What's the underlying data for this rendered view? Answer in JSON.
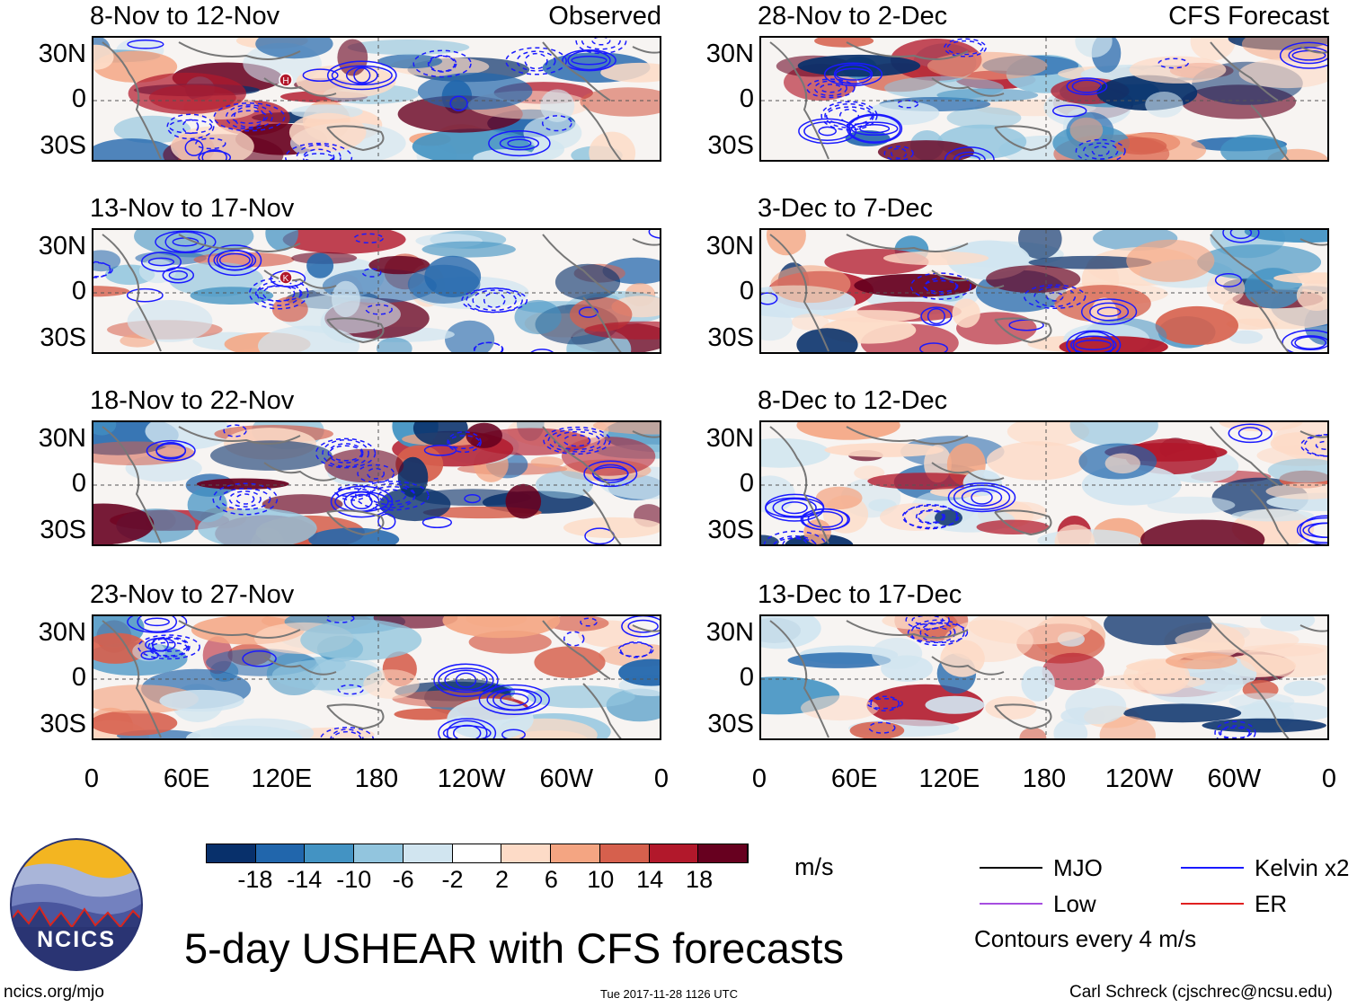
{
  "panels": [
    {
      "col": 0,
      "row": 0,
      "title": "8-Nov to 12-Nov",
      "tag": "Observed",
      "seed": 3
    },
    {
      "col": 0,
      "row": 1,
      "title": "13-Nov to 17-Nov",
      "tag": "",
      "seed": 7
    },
    {
      "col": 0,
      "row": 2,
      "title": "18-Nov to 22-Nov",
      "tag": "",
      "seed": 11
    },
    {
      "col": 0,
      "row": 3,
      "title": "23-Nov to 27-Nov",
      "tag": "",
      "seed": 17
    },
    {
      "col": 1,
      "row": 0,
      "title": "28-Nov to 2-Dec",
      "tag": "CFS Forecast",
      "seed": 23
    },
    {
      "col": 1,
      "row": 1,
      "title": "3-Dec to 7-Dec",
      "tag": "",
      "seed": 29
    },
    {
      "col": 1,
      "row": 2,
      "title": "8-Dec to 12-Dec",
      "tag": "",
      "seed": 31
    },
    {
      "col": 1,
      "row": 3,
      "title": "13-Dec to 17-Dec",
      "tag": "",
      "seed": 37
    }
  ],
  "lat_labels": [
    "30N",
    "0",
    "30S"
  ],
  "lon_labels": [
    "0",
    "60E",
    "120E",
    "180",
    "120W",
    "60W",
    "0"
  ],
  "colorbar": {
    "colors": [
      "#08306b",
      "#2166ac",
      "#4393c3",
      "#92c5de",
      "#d1e5f0",
      "#ffffff",
      "#fddbc7",
      "#f4a582",
      "#d6604d",
      "#b2182b",
      "#67001f"
    ],
    "labels": [
      "-18",
      "-14",
      "-10",
      "-6",
      "-2",
      "2",
      "6",
      "10",
      "14",
      "18"
    ],
    "units": "m/s"
  },
  "legend": {
    "items": [
      {
        "label": "MJO",
        "color": "#000000"
      },
      {
        "label": "Kelvin x2",
        "color": "#1a1aff"
      },
      {
        "label": "Low",
        "color": "#a64ee0"
      },
      {
        "label": "ER",
        "color": "#e02020"
      }
    ],
    "note": "Contours every 4 m/s"
  },
  "title": "5-day USHEAR with CFS forecasts",
  "logo_text": "NCICS",
  "footer": {
    "left": "ncics.org/mjo",
    "center": "Tue 2017-11-28 1126 UTC",
    "right": "Carl Schreck (cjschrec@ncsu.edu)"
  },
  "markers": [
    {
      "panel": 0,
      "symbol": "H"
    },
    {
      "panel": 1,
      "symbol": "K"
    }
  ]
}
